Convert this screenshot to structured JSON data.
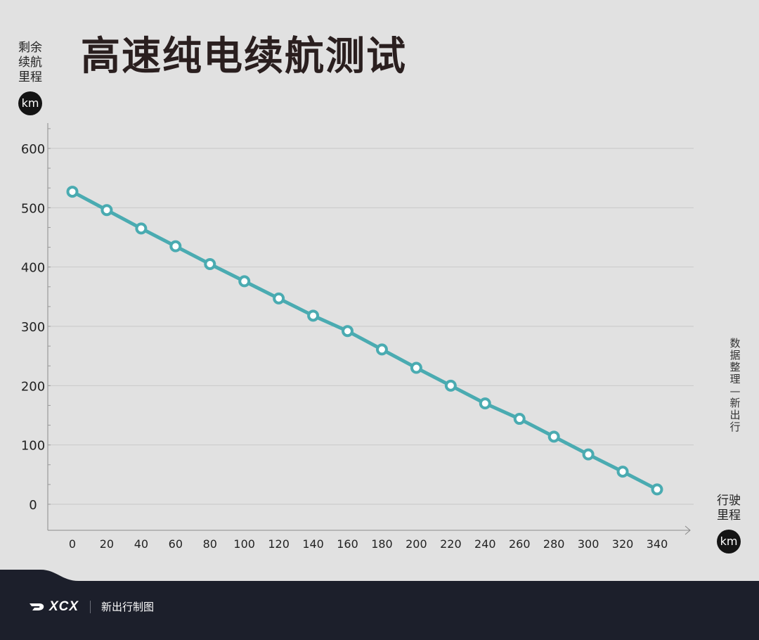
{
  "chart_data": {
    "type": "line",
    "title": "高速纯电续航测试",
    "ylabel_lines": [
      "剩余",
      "续航",
      "里程"
    ],
    "ylabel_unit": "km",
    "xlabel_lines": [
      "行驶",
      "里程"
    ],
    "xlabel_unit": "km",
    "x": [
      0,
      20,
      40,
      60,
      80,
      100,
      120,
      140,
      160,
      180,
      200,
      220,
      240,
      260,
      280,
      300,
      320,
      340
    ],
    "series": [
      {
        "values": [
          527,
          496,
          465,
          435,
          405,
          376,
          347,
          318,
          292,
          261,
          230,
          200,
          170,
          144,
          114,
          84,
          55,
          25
        ],
        "color": "#4aabb1"
      }
    ],
    "yticks": [
      0,
      100,
      200,
      300,
      400,
      500,
      600
    ],
    "xticks": [
      0,
      20,
      40,
      60,
      80,
      100,
      120,
      140,
      160,
      180,
      200,
      220,
      240,
      260,
      280,
      300,
      320,
      340
    ],
    "ylim": [
      0,
      600
    ],
    "grid": true,
    "side_note": "数据整理—新出行"
  },
  "colors": {
    "background": "#e1e1e1",
    "line": "#4aabb1",
    "footer": "#1c1f2b"
  },
  "footer": {
    "logo_text": "XCX",
    "text": "新出行制图"
  }
}
